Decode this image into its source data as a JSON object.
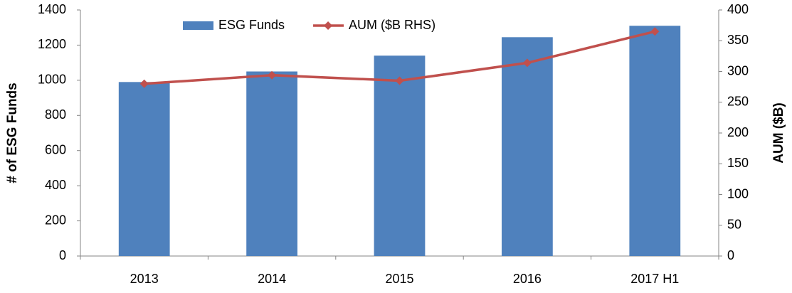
{
  "chart_data": {
    "type": "bar",
    "categories": [
      "2013",
      "2014",
      "2015",
      "2016",
      "2017 H1"
    ],
    "series": [
      {
        "name": "ESG Funds",
        "color": "#4f81bd",
        "type": "bar",
        "values": [
          990,
          1050,
          1140,
          1245,
          1310
        ]
      },
      {
        "name": "AUM ($B RHS)",
        "color": "#c0504d",
        "type": "line",
        "axis": "y2",
        "values": [
          280,
          294,
          285,
          314,
          365
        ]
      }
    ],
    "ylabel": "# of ESG Funds",
    "y2label": "AUM ($B)",
    "ylim": [
      0,
      1400
    ],
    "yticks": [
      0,
      200,
      400,
      600,
      800,
      1000,
      1200,
      1400
    ],
    "y2lim": [
      0,
      400
    ],
    "y2ticks": [
      0,
      50,
      100,
      150,
      200,
      250,
      300,
      350,
      400
    ],
    "grid": false,
    "legend": "top"
  }
}
